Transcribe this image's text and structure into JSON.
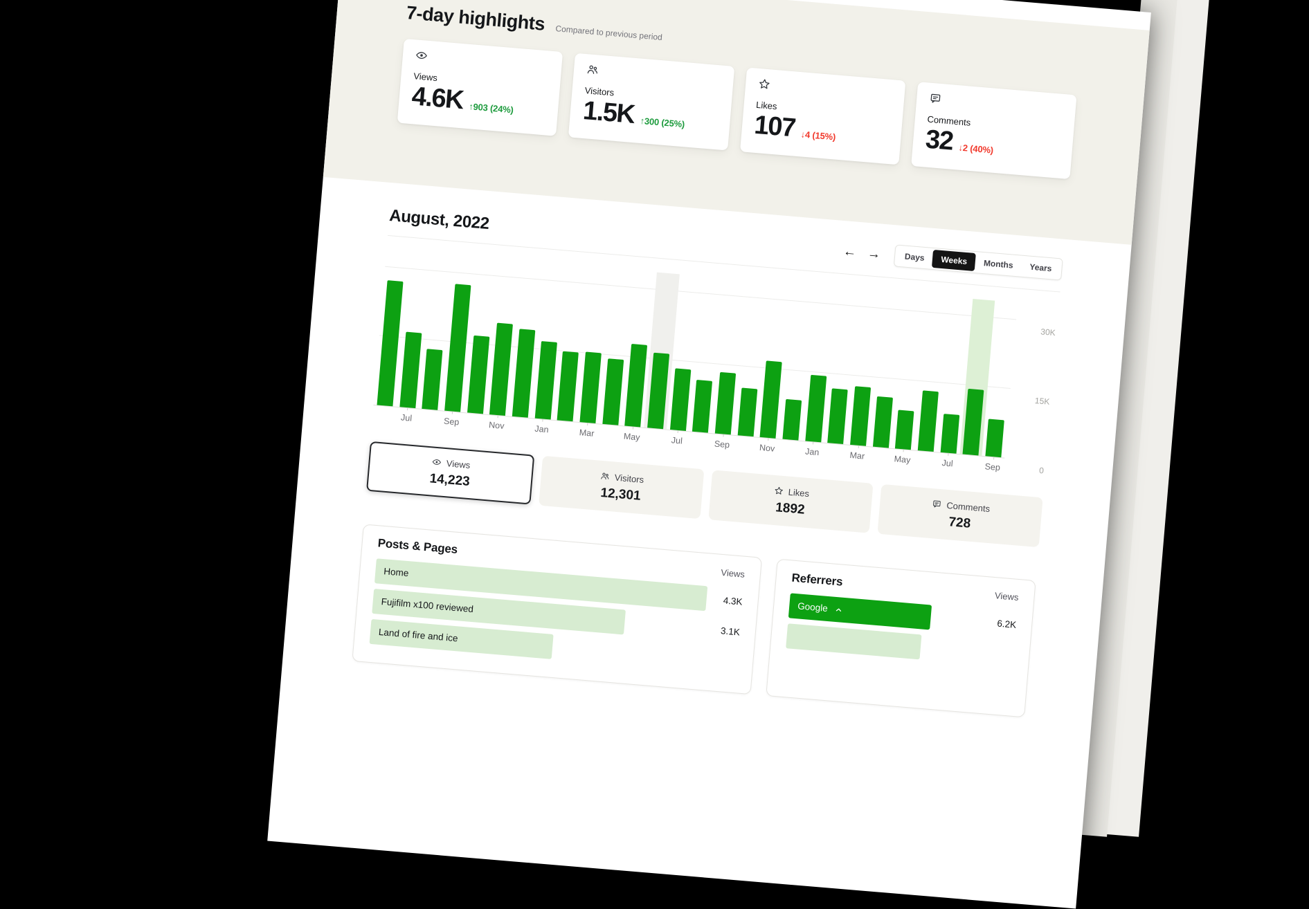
{
  "page": {
    "background": "#000000",
    "sheet_color": "#ffffff",
    "section_beige": "#f2f1ea",
    "rotation_deg": 4.8
  },
  "highlights": {
    "title": "7-day highlights",
    "subtitle": "Compared to previous period",
    "cards": [
      {
        "icon": "eye",
        "label": "Views",
        "value": "4.6K",
        "delta": "↑903 (24%)",
        "direction": "up"
      },
      {
        "icon": "people",
        "label": "Visitors",
        "value": "1.5K",
        "delta": "↑300 (25%)",
        "direction": "up"
      },
      {
        "icon": "star",
        "label": "Likes",
        "value": "107",
        "delta": "↓4 (15%)",
        "direction": "down"
      },
      {
        "icon": "comment",
        "label": "Comments",
        "value": "32",
        "delta": "↓2 (40%)",
        "direction": "down"
      }
    ]
  },
  "period": {
    "title": "August, 2022",
    "nav": {
      "prev": "←",
      "next": "→"
    },
    "range_tabs": [
      {
        "label": "Days",
        "active": false
      },
      {
        "label": "Weeks",
        "active": true
      },
      {
        "label": "Months",
        "active": false
      },
      {
        "label": "Years",
        "active": false
      }
    ]
  },
  "chart_data": {
    "type": "bar",
    "title": "August, 2022",
    "selected_metric": "Views",
    "values": [
      27200,
      16400,
      13100,
      27600,
      16800,
      20000,
      19000,
      16800,
      15000,
      15300,
      14200,
      17900,
      16400,
      13400,
      11300,
      13400,
      10400,
      16600,
      8700,
      14400,
      11800,
      12800,
      11000,
      8400,
      13100,
      8400,
      14223,
      8100
    ],
    "xticks": [
      {
        "index": 1,
        "label": "Jul"
      },
      {
        "index": 3,
        "label": "Sep"
      },
      {
        "index": 5,
        "label": "Nov"
      },
      {
        "index": 7,
        "label": "Jan"
      },
      {
        "index": 9,
        "label": "Mar"
      },
      {
        "index": 11,
        "label": "May"
      },
      {
        "index": 13,
        "label": "Jul"
      },
      {
        "index": 15,
        "label": "Sep"
      },
      {
        "index": 17,
        "label": "Nov"
      },
      {
        "index": 19,
        "label": "Jan"
      },
      {
        "index": 21,
        "label": "Mar"
      },
      {
        "index": 23,
        "label": "May"
      },
      {
        "index": 25,
        "label": "Jul"
      },
      {
        "index": 27,
        "label": "Sep"
      }
    ],
    "ylim": [
      0,
      33000
    ],
    "yticks": [
      {
        "value": 0,
        "label": "0"
      },
      {
        "value": 15000,
        "label": "15K"
      },
      {
        "value": 30000,
        "label": "30K"
      }
    ],
    "gridlines": [
      15000,
      30000
    ],
    "grid": "horizontal",
    "legend_position": "none",
    "bar_color": "#0da112",
    "highlighted_index": 26,
    "highlight_band_color": "#ddf0d5",
    "hover_index": 12,
    "hover_band_color": "#f0f0ed"
  },
  "metric_tabs": [
    {
      "icon": "eye",
      "label": "Views",
      "value": "14,223",
      "selected": true
    },
    {
      "icon": "people",
      "label": "Visitors",
      "value": "12,301",
      "selected": false
    },
    {
      "icon": "star",
      "label": "Likes",
      "value": "1892",
      "selected": false
    },
    {
      "icon": "comment",
      "label": "Comments",
      "value": "728",
      "selected": false
    }
  ],
  "posts": {
    "title": "Posts & Pages",
    "column": "Views",
    "rows": [
      {
        "label": "Home",
        "value": "4.3K",
        "width_pct": 100,
        "style": "light"
      },
      {
        "label": "Fujifilm x100 reviewed",
        "value": "3.1K",
        "width_pct": 76,
        "style": "light"
      },
      {
        "label": "Land of fire and ice",
        "value": "",
        "width_pct": 55,
        "style": "light"
      }
    ]
  },
  "referrers": {
    "title": "Referrers",
    "column": "Views",
    "rows": [
      {
        "label": "Google",
        "value": "6.2K",
        "width_pct": 74,
        "style": "solid",
        "expanded": true
      },
      {
        "label": "",
        "value": "",
        "width_pct": 70,
        "style": "light"
      }
    ]
  },
  "colors": {
    "bar_green": "#0da112",
    "light_green_row": "#d7ecd1",
    "delta_green": "#1d9b3d",
    "delta_red": "#f1392c",
    "beige": "#f2f1ea",
    "tab_beige": "#f4f3ee",
    "text_dark": "#15171a",
    "text_gray": "#6b6b70",
    "axis_gray": "#a4a4a0",
    "segment_active_bg": "#141414"
  }
}
